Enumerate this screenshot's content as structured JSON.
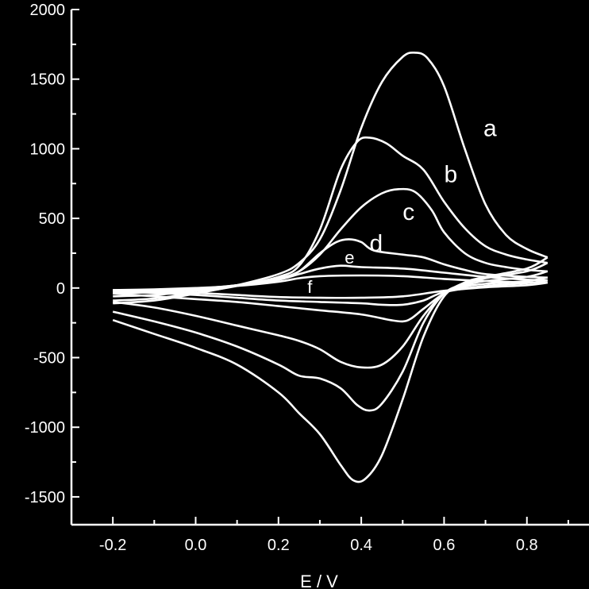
{
  "chart_data": {
    "type": "line",
    "title": "",
    "xlabel": "E / V",
    "ylabel": "",
    "xlim": [
      -0.3,
      0.95
    ],
    "ylim": [
      -1700,
      2000
    ],
    "grid": false,
    "legend": "none",
    "x_ticks": [
      "-0.2",
      "0.0",
      "0.2",
      "0.4",
      "0.6",
      "0.8"
    ],
    "x_tick_values": [
      -0.2,
      0.0,
      0.2,
      0.4,
      0.6,
      0.8
    ],
    "y_ticks": [
      "2000",
      "1500",
      "1000",
      "500",
      "0",
      "-500",
      "-1000",
      "-1500"
    ],
    "y_tick_values": [
      2000,
      1500,
      1000,
      500,
      0,
      -500,
      -1000,
      -1500
    ],
    "colors": {
      "background": "#000000",
      "line": "#ffffff"
    },
    "series": [
      {
        "name": "a",
        "forward": [
          [
            -0.2,
            -110
          ],
          [
            -0.1,
            -90
          ],
          [
            0.0,
            -40
          ],
          [
            0.1,
            20
          ],
          [
            0.2,
            100
          ],
          [
            0.25,
            180
          ],
          [
            0.3,
            350
          ],
          [
            0.35,
            700
          ],
          [
            0.4,
            1150
          ],
          [
            0.45,
            1480
          ],
          [
            0.5,
            1660
          ],
          [
            0.53,
            1690
          ],
          [
            0.56,
            1650
          ],
          [
            0.6,
            1450
          ],
          [
            0.65,
            1000
          ],
          [
            0.7,
            600
          ],
          [
            0.75,
            380
          ],
          [
            0.8,
            280
          ],
          [
            0.85,
            220
          ]
        ],
        "reverse": [
          [
            0.85,
            220
          ],
          [
            0.8,
            140
          ],
          [
            0.7,
            80
          ],
          [
            0.65,
            40
          ],
          [
            0.6,
            -60
          ],
          [
            0.55,
            -350
          ],
          [
            0.5,
            -800
          ],
          [
            0.45,
            -1200
          ],
          [
            0.41,
            -1370
          ],
          [
            0.38,
            -1380
          ],
          [
            0.35,
            -1270
          ],
          [
            0.3,
            -1050
          ],
          [
            0.25,
            -900
          ],
          [
            0.2,
            -750
          ],
          [
            0.1,
            -550
          ],
          [
            0.0,
            -430
          ],
          [
            -0.1,
            -330
          ],
          [
            -0.2,
            -230
          ]
        ],
        "label_pos": [
          0.695,
          1090
        ]
      },
      {
        "name": "b",
        "forward": [
          [
            -0.2,
            -90
          ],
          [
            -0.1,
            -75
          ],
          [
            0.0,
            -35
          ],
          [
            0.1,
            15
          ],
          [
            0.2,
            80
          ],
          [
            0.25,
            160
          ],
          [
            0.3,
            420
          ],
          [
            0.35,
            850
          ],
          [
            0.39,
            1050
          ],
          [
            0.42,
            1080
          ],
          [
            0.46,
            1040
          ],
          [
            0.5,
            950
          ],
          [
            0.55,
            850
          ],
          [
            0.6,
            620
          ],
          [
            0.65,
            430
          ],
          [
            0.7,
            300
          ],
          [
            0.75,
            240
          ],
          [
            0.8,
            205
          ],
          [
            0.85,
            180
          ]
        ],
        "reverse": [
          [
            0.85,
            180
          ],
          [
            0.8,
            120
          ],
          [
            0.7,
            70
          ],
          [
            0.65,
            30
          ],
          [
            0.6,
            -40
          ],
          [
            0.55,
            -250
          ],
          [
            0.5,
            -600
          ],
          [
            0.45,
            -830
          ],
          [
            0.42,
            -880
          ],
          [
            0.39,
            -840
          ],
          [
            0.35,
            -720
          ],
          [
            0.3,
            -650
          ],
          [
            0.25,
            -630
          ],
          [
            0.2,
            -550
          ],
          [
            0.1,
            -420
          ],
          [
            0.0,
            -320
          ],
          [
            -0.1,
            -240
          ],
          [
            -0.2,
            -170
          ]
        ],
        "label_pos": [
          0.6,
          760
        ]
      },
      {
        "name": "c",
        "forward": [
          [
            -0.2,
            -60
          ],
          [
            -0.1,
            -50
          ],
          [
            0.0,
            -20
          ],
          [
            0.1,
            20
          ],
          [
            0.2,
            70
          ],
          [
            0.25,
            120
          ],
          [
            0.3,
            240
          ],
          [
            0.35,
            420
          ],
          [
            0.4,
            580
          ],
          [
            0.45,
            680
          ],
          [
            0.49,
            710
          ],
          [
            0.53,
            690
          ],
          [
            0.57,
            560
          ],
          [
            0.6,
            400
          ],
          [
            0.65,
            250
          ],
          [
            0.7,
            180
          ],
          [
            0.75,
            150
          ],
          [
            0.8,
            130
          ],
          [
            0.85,
            120
          ]
        ],
        "reverse": [
          [
            0.85,
            120
          ],
          [
            0.8,
            80
          ],
          [
            0.7,
            50
          ],
          [
            0.65,
            20
          ],
          [
            0.6,
            -40
          ],
          [
            0.55,
            -200
          ],
          [
            0.5,
            -420
          ],
          [
            0.45,
            -550
          ],
          [
            0.4,
            -570
          ],
          [
            0.35,
            -530
          ],
          [
            0.3,
            -440
          ],
          [
            0.25,
            -380
          ],
          [
            0.2,
            -340
          ],
          [
            0.1,
            -270
          ],
          [
            0.0,
            -200
          ],
          [
            -0.1,
            -140
          ],
          [
            -0.2,
            -100
          ]
        ],
        "label_pos": [
          0.5,
          490
        ]
      },
      {
        "name": "d",
        "forward": [
          [
            -0.2,
            -40
          ],
          [
            -0.1,
            -30
          ],
          [
            0.0,
            -10
          ],
          [
            0.1,
            20
          ],
          [
            0.2,
            60
          ],
          [
            0.25,
            120
          ],
          [
            0.3,
            250
          ],
          [
            0.34,
            330
          ],
          [
            0.37,
            350
          ],
          [
            0.4,
            330
          ],
          [
            0.43,
            270
          ],
          [
            0.5,
            240
          ],
          [
            0.55,
            220
          ],
          [
            0.6,
            170
          ],
          [
            0.65,
            130
          ],
          [
            0.7,
            100
          ],
          [
            0.8,
            80
          ],
          [
            0.85,
            75
          ]
        ],
        "reverse": [
          [
            0.85,
            75
          ],
          [
            0.8,
            50
          ],
          [
            0.7,
            30
          ],
          [
            0.65,
            10
          ],
          [
            0.6,
            -40
          ],
          [
            0.55,
            -150
          ],
          [
            0.52,
            -220
          ],
          [
            0.5,
            -240
          ],
          [
            0.47,
            -230
          ],
          [
            0.4,
            -190
          ],
          [
            0.3,
            -160
          ],
          [
            0.2,
            -130
          ],
          [
            0.1,
            -100
          ],
          [
            0.0,
            -80
          ],
          [
            -0.1,
            -60
          ],
          [
            -0.2,
            -40
          ]
        ],
        "label_pos": [
          0.42,
          265
        ]
      },
      {
        "name": "e",
        "forward": [
          [
            -0.2,
            -25
          ],
          [
            -0.1,
            -18
          ],
          [
            0.0,
            -5
          ],
          [
            0.1,
            20
          ],
          [
            0.2,
            60
          ],
          [
            0.25,
            100
          ],
          [
            0.3,
            140
          ],
          [
            0.35,
            160
          ],
          [
            0.4,
            150
          ],
          [
            0.5,
            140
          ],
          [
            0.6,
            110
          ],
          [
            0.7,
            80
          ],
          [
            0.8,
            60
          ],
          [
            0.85,
            55
          ]
        ],
        "reverse": [
          [
            0.85,
            55
          ],
          [
            0.8,
            35
          ],
          [
            0.7,
            15
          ],
          [
            0.6,
            -30
          ],
          [
            0.55,
            -90
          ],
          [
            0.5,
            -120
          ],
          [
            0.45,
            -120
          ],
          [
            0.4,
            -110
          ],
          [
            0.3,
            -100
          ],
          [
            0.2,
            -90
          ],
          [
            0.1,
            -70
          ],
          [
            0.0,
            -50
          ],
          [
            -0.1,
            -35
          ],
          [
            -0.2,
            -25
          ]
        ],
        "label_pos": [
          0.36,
          175
        ]
      },
      {
        "name": "f",
        "forward": [
          [
            -0.2,
            -15
          ],
          [
            -0.1,
            -10
          ],
          [
            0.0,
            0
          ],
          [
            0.1,
            15
          ],
          [
            0.2,
            45
          ],
          [
            0.25,
            70
          ],
          [
            0.3,
            85
          ],
          [
            0.4,
            90
          ],
          [
            0.5,
            85
          ],
          [
            0.6,
            65
          ],
          [
            0.7,
            50
          ],
          [
            0.8,
            40
          ],
          [
            0.85,
            38
          ]
        ],
        "reverse": [
          [
            0.85,
            38
          ],
          [
            0.8,
            20
          ],
          [
            0.7,
            5
          ],
          [
            0.6,
            -20
          ],
          [
            0.5,
            -60
          ],
          [
            0.4,
            -70
          ],
          [
            0.3,
            -70
          ],
          [
            0.2,
            -65
          ],
          [
            0.1,
            -50
          ],
          [
            0.0,
            -35
          ],
          [
            -0.1,
            -22
          ],
          [
            -0.2,
            -15
          ]
        ],
        "label_pos": [
          0.27,
          -35
        ]
      }
    ]
  }
}
